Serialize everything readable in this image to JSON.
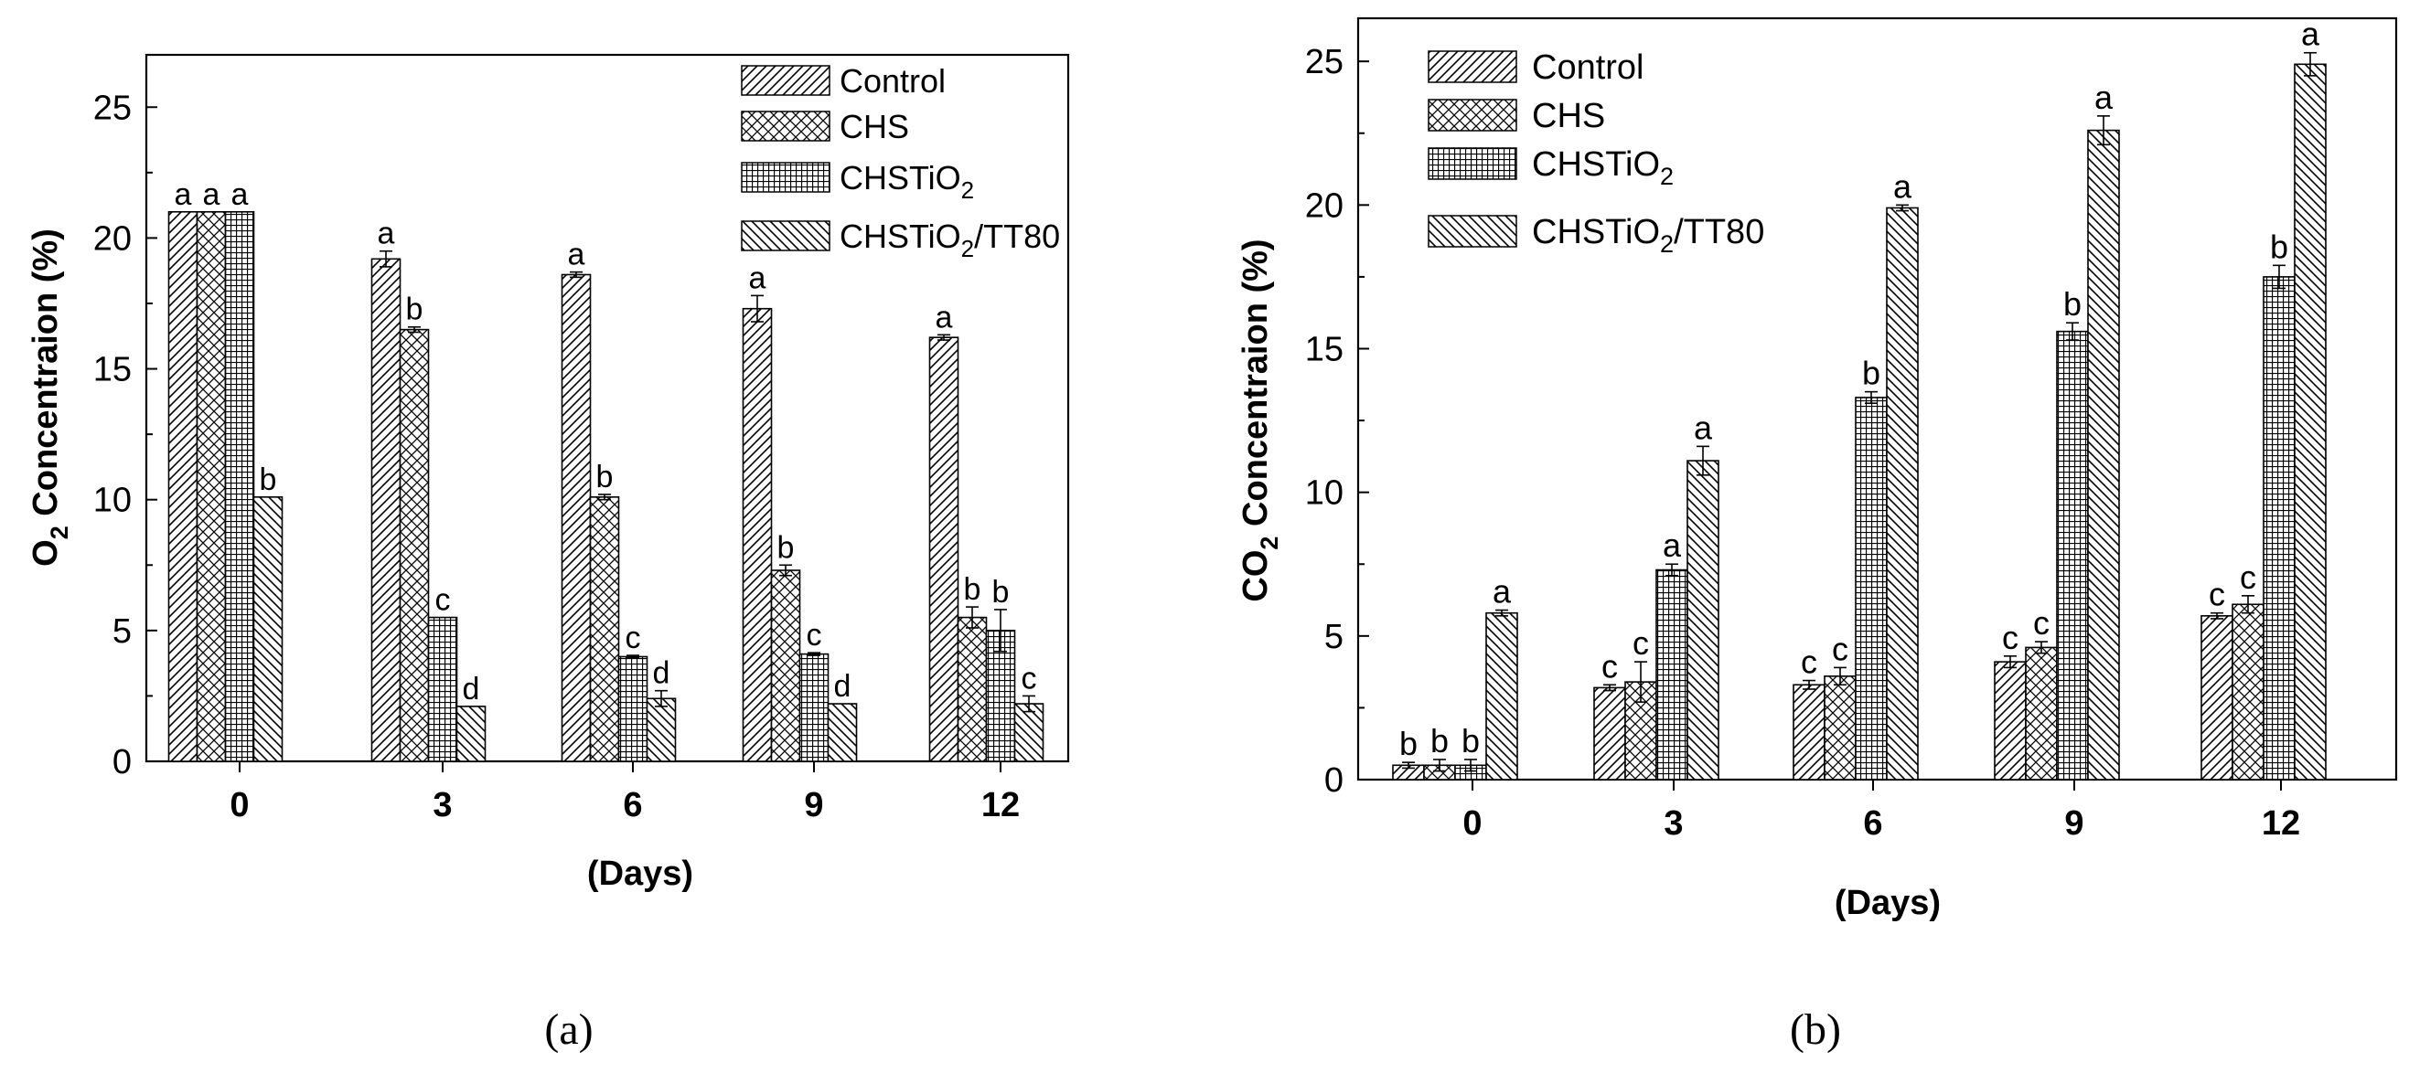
{
  "chart_data": [
    {
      "id": "a",
      "type": "bar",
      "panel_label": "(a)",
      "title": "",
      "xlabel": "(Days)",
      "ylabel_main": "O",
      "ylabel_sub": "2",
      "ylabel_rest": " Concentraion (%)",
      "ylim": [
        0,
        27
      ],
      "yticks": [
        0,
        5,
        10,
        15,
        20,
        25
      ],
      "categories": [
        "0",
        "3",
        "6",
        "9",
        "12"
      ],
      "legend_position": "top-right",
      "series": [
        {
          "name": "Control",
          "legend_main": "Control",
          "legend_sub": "",
          "legend_rest": "",
          "pattern": "diag-right",
          "values": [
            21.0,
            19.2,
            18.6,
            17.3,
            16.2
          ],
          "errors": [
            0.0,
            0.3,
            0.1,
            0.5,
            0.1
          ],
          "letters": [
            "a",
            "a",
            "a",
            "a",
            "a"
          ]
        },
        {
          "name": "CHS",
          "legend_main": "CHS",
          "legend_sub": "",
          "legend_rest": "",
          "pattern": "crosshatch",
          "values": [
            21.0,
            16.5,
            10.1,
            7.3,
            5.5
          ],
          "errors": [
            0.0,
            0.1,
            0.1,
            0.2,
            0.4
          ],
          "letters": [
            "a",
            "b",
            "b",
            "b",
            "b"
          ]
        },
        {
          "name": "CHSTiO2",
          "legend_main": "CHSTiO",
          "legend_sub": "2",
          "legend_rest": "",
          "pattern": "grid",
          "values": [
            21.0,
            5.5,
            4.0,
            4.1,
            5.0
          ],
          "errors": [
            0.0,
            0.0,
            0.05,
            0.05,
            0.8
          ],
          "letters": [
            "a",
            "c",
            "c",
            "c",
            "b"
          ]
        },
        {
          "name": "CHSTiO2/TT80",
          "legend_main": "CHSTiO",
          "legend_sub": "2",
          "legend_rest": "/TT80",
          "pattern": "diag-left",
          "values": [
            10.1,
            2.1,
            2.4,
            2.2,
            2.2
          ],
          "errors": [
            0.0,
            0.0,
            0.3,
            0.0,
            0.3
          ],
          "letters": [
            "b",
            "d",
            "d",
            "d",
            "c"
          ]
        }
      ]
    },
    {
      "id": "b",
      "type": "bar",
      "panel_label": "(b)",
      "title": "",
      "xlabel": "(Days)",
      "ylabel_main": "CO",
      "ylabel_sub": "2",
      "ylabel_rest": " Concentraion (%)",
      "ylim": [
        0,
        26.5
      ],
      "yticks": [
        0,
        5,
        10,
        15,
        20,
        25
      ],
      "categories": [
        "0",
        "3",
        "6",
        "9",
        "12"
      ],
      "legend_position": "top-left",
      "series": [
        {
          "name": "Control",
          "legend_main": "Control",
          "legend_sub": "",
          "legend_rest": "",
          "pattern": "diag-right",
          "values": [
            0.5,
            3.2,
            3.3,
            4.1,
            5.7
          ],
          "errors": [
            0.1,
            0.1,
            0.15,
            0.2,
            0.1
          ],
          "letters": [
            "b",
            "c",
            "c",
            "c",
            "c"
          ]
        },
        {
          "name": "CHS",
          "legend_main": "CHS",
          "legend_sub": "",
          "legend_rest": "",
          "pattern": "crosshatch",
          "values": [
            0.5,
            3.4,
            3.6,
            4.6,
            6.1
          ],
          "errors": [
            0.2,
            0.7,
            0.3,
            0.2,
            0.3
          ],
          "letters": [
            "b",
            "c",
            "c",
            "c",
            "c"
          ]
        },
        {
          "name": "CHSTiO2",
          "legend_main": "CHSTiO",
          "legend_sub": "2",
          "legend_rest": "",
          "pattern": "grid",
          "values": [
            0.5,
            7.3,
            13.3,
            15.6,
            17.5
          ],
          "errors": [
            0.2,
            0.2,
            0.2,
            0.3,
            0.4
          ],
          "letters": [
            "b",
            "a",
            "b",
            "b",
            "b"
          ]
        },
        {
          "name": "CHSTiO2/TT80",
          "legend_main": "CHSTiO",
          "legend_sub": "2",
          "legend_rest": "/TT80",
          "pattern": "diag-left",
          "values": [
            5.8,
            11.1,
            19.9,
            22.6,
            24.9
          ],
          "errors": [
            0.1,
            0.5,
            0.1,
            0.5,
            0.4
          ],
          "letters": [
            "a",
            "a",
            "a",
            "a",
            "a"
          ]
        }
      ]
    }
  ]
}
